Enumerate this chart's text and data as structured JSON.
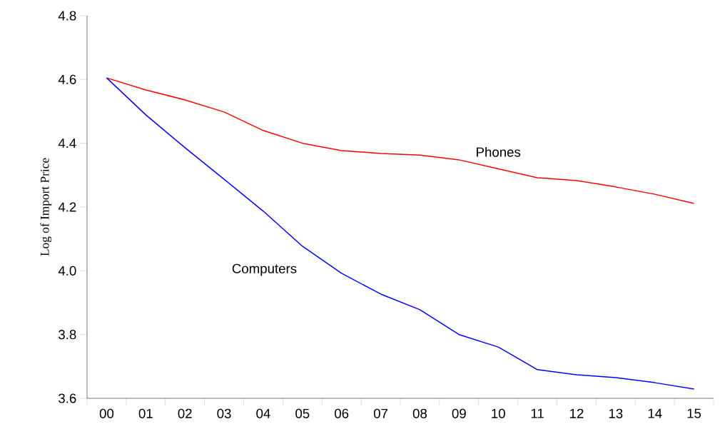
{
  "chart_data": {
    "type": "line",
    "ylabel": "Log of Import Price",
    "categories": [
      "00",
      "01",
      "02",
      "03",
      "04",
      "05",
      "06",
      "07",
      "08",
      "09",
      "10",
      "11",
      "12",
      "13",
      "14",
      "15"
    ],
    "series": [
      {
        "name": "Phones",
        "color": "#ff0000",
        "values": [
          4.605,
          4.567,
          4.536,
          4.498,
          4.44,
          4.4,
          4.377,
          4.368,
          4.363,
          4.348,
          4.32,
          4.292,
          4.283,
          4.263,
          4.24,
          4.211
        ]
      },
      {
        "name": "Computers",
        "color": "#0000ff",
        "values": [
          4.605,
          4.489,
          4.386,
          4.287,
          4.187,
          4.077,
          3.992,
          3.927,
          3.878,
          3.8,
          3.761,
          3.69,
          3.674,
          3.665,
          3.649,
          3.629
        ]
      }
    ],
    "ylim": [
      3.6,
      4.8
    ],
    "yticks": [
      3.6,
      3.8,
      {
        "value": 4,
        "label": "4.0"
      },
      4.2,
      4.4,
      4.6,
      4.8
    ],
    "grid": false,
    "legend": false,
    "marker": "none",
    "line_style": "solid"
  }
}
